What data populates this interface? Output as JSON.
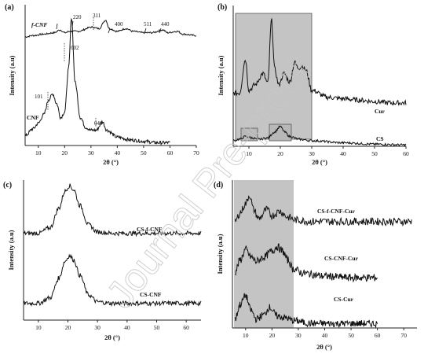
{
  "watermark": "Journal Pre-proof",
  "chart_data": [
    {
      "panel": "(a)",
      "type": "line",
      "xlabel": "2θ (°)",
      "ylabel": "Intensity (a.u)",
      "xlim": [
        5,
        70
      ],
      "x_ticks": [
        10,
        20,
        30,
        40,
        50,
        60,
        70
      ],
      "series": [
        {
          "name": "f-CNF",
          "x": [
            5,
            8,
            12,
            16,
            18.3,
            20,
            22,
            25,
            30.3,
            33,
            35.6,
            37,
            40,
            43.3,
            46,
            50,
            53,
            57.4,
            59,
            62.8,
            65,
            70
          ],
          "y": [
            78,
            79,
            80,
            81,
            83,
            81,
            82,
            82,
            85,
            84,
            90,
            84,
            82,
            84,
            82,
            81,
            81,
            83,
            81,
            82,
            80,
            79
          ]
        },
        {
          "name": "CNF",
          "x": [
            5,
            8,
            10,
            12,
            14,
            15.5,
            17,
            18.5,
            20,
            21.5,
            22.6,
            24,
            26,
            28,
            30,
            32,
            34.4,
            36,
            40,
            45,
            50,
            55,
            60
          ],
          "y": [
            7,
            12,
            16,
            22,
            33,
            37,
            30,
            20,
            24,
            55,
            92,
            45,
            20,
            13,
            11,
            11,
            17,
            11,
            6,
            4,
            3,
            2,
            2
          ]
        }
      ],
      "annotations": [
        "220",
        "311",
        "400",
        "511",
        "440",
        "002",
        "101",
        "040"
      ]
    },
    {
      "panel": "(b)",
      "type": "line",
      "xlabel": "2θ (°)",
      "ylabel": "Intensity (a.u)",
      "xlim": [
        5,
        60
      ],
      "x_ticks": [
        10,
        20,
        30,
        40,
        50,
        60
      ],
      "highlight": [
        [
          5,
          30
        ]
      ],
      "series": [
        {
          "name": "Cur",
          "x": [
            5,
            7,
            8.9,
            10,
            12,
            14.5,
            16,
            17.2,
            18.2,
            19.5,
            21.2,
            23,
            24.6,
            25.6,
            27,
            28.2,
            30,
            35,
            40,
            45,
            50,
            55,
            60
          ],
          "y": [
            38,
            38,
            62,
            40,
            44,
            52,
            45,
            90,
            55,
            44,
            52,
            46,
            60,
            56,
            57,
            54,
            40,
            35,
            34,
            33,
            32,
            31,
            31
          ]
        },
        {
          "name": "CS",
          "x": [
            5,
            7,
            9,
            11,
            13,
            16,
            18,
            20,
            21.5,
            23,
            26,
            30,
            40,
            50,
            60
          ],
          "y": [
            4,
            5,
            7,
            6,
            5,
            6,
            10,
            14,
            10,
            7,
            5,
            4,
            2.5,
            1.5,
            1
          ]
        }
      ]
    },
    {
      "panel": "(c)",
      "type": "line",
      "xlabel": "2θ (°)",
      "ylabel": "Intensity (a.u)",
      "xlim": [
        5,
        65
      ],
      "x_ticks": [
        10,
        20,
        30,
        40,
        50,
        60
      ],
      "series": [
        {
          "name": "CS-f-CNF",
          "x": [
            5,
            10,
            14,
            17,
            19,
            20.5,
            22,
            24,
            27,
            30,
            35,
            45,
            55,
            65
          ],
          "y": [
            62,
            62,
            66,
            80,
            92,
            96,
            93,
            82,
            68,
            63,
            62,
            62,
            62,
            62
          ]
        },
        {
          "name": "CS-CNF",
          "x": [
            5,
            10,
            14,
            17,
            19,
            20.5,
            22,
            24,
            27,
            30,
            35,
            45,
            55,
            65
          ],
          "y": [
            12,
            12,
            16,
            30,
            42,
            46,
            43,
            32,
            18,
            13,
            12,
            12,
            12,
            12
          ]
        }
      ]
    },
    {
      "panel": "(d)",
      "type": "line",
      "xlabel": "2θ (°)",
      "ylabel": "Intensity (a.u)",
      "xlim": [
        5,
        75
      ],
      "x_ticks": [
        10,
        20,
        30,
        40,
        50,
        60,
        70
      ],
      "highlight": [
        [
          6,
          28
        ]
      ],
      "series": [
        {
          "name": "CS-f-CNF-Cur",
          "x": [
            6,
            8,
            10,
            11.5,
            13,
            15,
            18,
            20,
            23,
            26,
            29,
            35,
            45,
            55,
            65,
            73
          ],
          "y": [
            72,
            78,
            84,
            90,
            80,
            74,
            80,
            76,
            79,
            75,
            73,
            72,
            72,
            72,
            72,
            72
          ]
        },
        {
          "name": "CS-CNF-Cur",
          "x": [
            6,
            8,
            10,
            12,
            14,
            17,
            20,
            22,
            24,
            26,
            28,
            32,
            40,
            50,
            60
          ],
          "y": [
            38,
            46,
            53,
            48,
            45,
            48,
            52,
            55,
            52,
            46,
            40,
            37,
            35,
            34,
            34
          ]
        },
        {
          "name": "CS-Cur",
          "x": [
            6,
            8,
            10,
            12,
            14,
            17,
            19,
            22,
            25,
            28,
            35,
            45,
            60
          ],
          "y": [
            6,
            16,
            22,
            12,
            6,
            9,
            14,
            8,
            7,
            5,
            3,
            3,
            3
          ]
        }
      ]
    }
  ]
}
